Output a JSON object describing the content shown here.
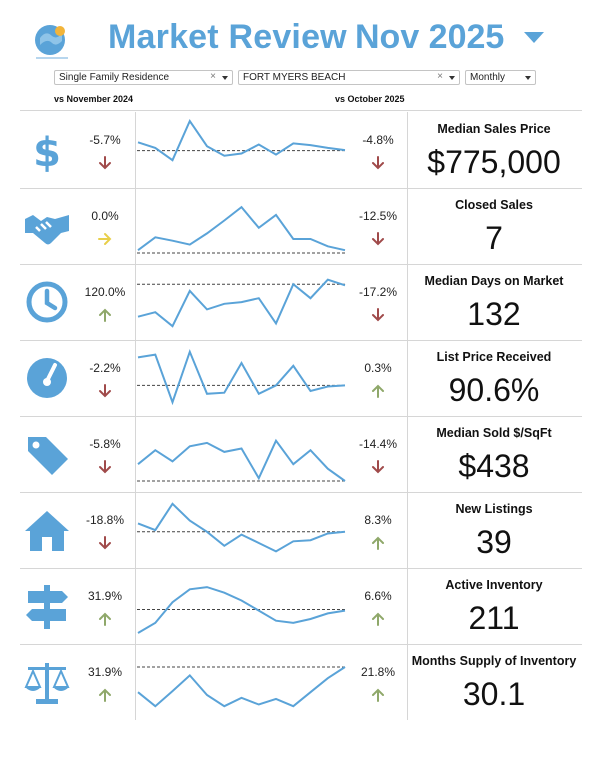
{
  "header": {
    "title": "Market Review",
    "period": "Nov 2025",
    "colors": {
      "brand": "#5aa3d8",
      "down": "#a04a4a",
      "flat": "#e8cf4a",
      "up": "#8fa86a",
      "line": "#5aa3d8"
    }
  },
  "filters": {
    "property_type": "Single Family Residence",
    "area": "FORT MYERS BEACH",
    "frequency": "Monthly",
    "clear_glyph": "×"
  },
  "compare": {
    "year": "vs November 2024",
    "month": "vs October 2025"
  },
  "metrics": [
    {
      "icon": "dollar-icon",
      "yoy": "-5.7%",
      "yoy_dir": "down",
      "mom": "-4.8%",
      "mom_dir": "down",
      "label": "Median Sales Price",
      "value": "$775,000",
      "series": [
        0.62,
        0.52,
        0.3,
        1.0,
        0.55,
        0.38,
        0.42,
        0.58,
        0.4,
        0.6,
        0.57,
        0.52,
        0.48
      ],
      "ref": 0.47
    },
    {
      "icon": "handshake-icon",
      "yoy": "0.0%",
      "yoy_dir": "flat",
      "mom": "-12.5%",
      "mom_dir": "down",
      "label": "Closed Sales",
      "value": "7",
      "series": [
        0.05,
        0.28,
        0.22,
        0.15,
        0.35,
        0.58,
        0.82,
        0.45,
        0.68,
        0.25,
        0.25,
        0.12,
        0.05
      ],
      "ref": 0.0
    },
    {
      "icon": "clock-icon",
      "yoy": "120.0%",
      "yoy_dir": "up",
      "mom": "-17.2%",
      "mom_dir": "down",
      "label": "Median Days on Market",
      "value": "132",
      "series": [
        0.22,
        0.3,
        0.05,
        0.68,
        0.35,
        0.45,
        0.48,
        0.55,
        0.1,
        0.8,
        0.55,
        0.88,
        0.78
      ],
      "ref": 0.8
    },
    {
      "icon": "gauge-icon",
      "yoy": "-2.2%",
      "yoy_dir": "down",
      "mom": "0.3%",
      "mom_dir": "up",
      "label": "List Price Received",
      "value": "90.6%",
      "series": [
        0.85,
        0.9,
        0.05,
        0.95,
        0.2,
        0.22,
        0.75,
        0.2,
        0.35,
        0.7,
        0.25,
        0.33,
        0.35
      ],
      "ref": 0.35
    },
    {
      "icon": "tag-icon",
      "yoy": "-5.8%",
      "yoy_dir": "down",
      "mom": "-14.4%",
      "mom_dir": "down",
      "label": "Median Sold $/SqFt",
      "value": "$438",
      "series": [
        0.3,
        0.55,
        0.35,
        0.62,
        0.68,
        0.52,
        0.58,
        0.05,
        0.72,
        0.3,
        0.55,
        0.22,
        0.0
      ],
      "ref": 0.0
    },
    {
      "icon": "house-icon",
      "yoy": "-18.8%",
      "yoy_dir": "down",
      "mom": "8.3%",
      "mom_dir": "up",
      "label": "New Listings",
      "value": "39",
      "series": [
        0.6,
        0.48,
        0.95,
        0.65,
        0.45,
        0.2,
        0.4,
        0.25,
        0.1,
        0.28,
        0.3,
        0.42,
        0.45
      ],
      "ref": 0.45
    },
    {
      "icon": "signpost-icon",
      "yoy": "31.9%",
      "yoy_dir": "up",
      "mom": "6.6%",
      "mom_dir": "up",
      "label": "Active Inventory",
      "value": "211",
      "series": [
        0.0,
        0.18,
        0.55,
        0.78,
        0.82,
        0.72,
        0.58,
        0.4,
        0.22,
        0.18,
        0.25,
        0.35,
        0.4
      ],
      "ref": 0.42
    },
    {
      "icon": "scales-icon",
      "yoy": "31.9%",
      "yoy_dir": "up",
      "mom": "21.8%",
      "mom_dir": "up",
      "label": "Months Supply of Inventory",
      "value": "30.1",
      "series": [
        0.3,
        0.05,
        0.32,
        0.6,
        0.25,
        0.05,
        0.2,
        0.08,
        0.18,
        0.05,
        0.3,
        0.55,
        0.75
      ],
      "ref": 0.75
    }
  ]
}
